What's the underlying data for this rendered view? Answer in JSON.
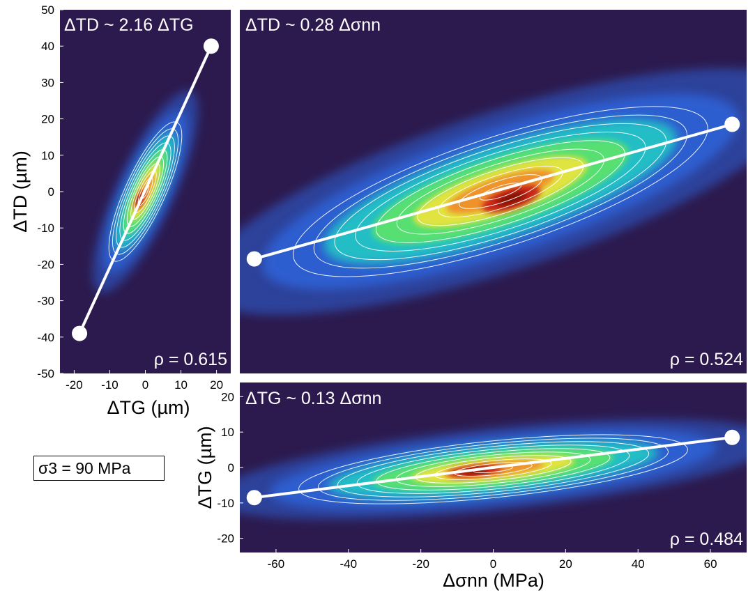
{
  "note": "σ3 = 90 MPa",
  "chart_data": [
    {
      "type": "heatmap",
      "title": "ΔTD ~ 2.16 ΔTG",
      "annotation": "ρ = 0.615",
      "xlabel": "ΔTG (µm)",
      "ylabel": "ΔTD (µm)",
      "xlim": [
        -24,
        24
      ],
      "ylim": [
        -50,
        50
      ],
      "xticks": [
        -20,
        -10,
        0,
        10,
        20
      ],
      "yticks": [
        -50,
        -40,
        -30,
        -20,
        -10,
        0,
        10,
        20,
        30,
        40,
        50
      ],
      "fit_line": {
        "x": [
          -18.5,
          18.5
        ],
        "y": [
          -39,
          40
        ],
        "slope": 2.16
      },
      "density_peak": {
        "x": -1.5,
        "y": -2
      },
      "contours": {
        "count": 10,
        "center": [
          0,
          0
        ],
        "semi_major": 21,
        "semi_minor": 5.6,
        "angle_deg": 65
      },
      "colormap": [
        "#2c1a4e",
        "#2f64d9",
        "#23c9c5",
        "#5de36a",
        "#f0e43a",
        "#f08a2a",
        "#c62014",
        "#7c0a06"
      ],
      "grid": false
    },
    {
      "type": "heatmap",
      "title": "ΔTD ~ 0.28 Δσnn",
      "annotation": "ρ = 0.524",
      "xlim": [
        -70,
        70
      ],
      "ylim": [
        -50,
        50
      ],
      "fit_line": {
        "x": [
          -66,
          66
        ],
        "y": [
          -18.5,
          18.5
        ],
        "slope": 0.28
      },
      "density_peak": {
        "x": 5,
        "y": -2
      },
      "contours": {
        "count": 10,
        "center": [
          2,
          0
        ],
        "semi_major": 60,
        "semi_minor": 15,
        "angle_deg": 18
      },
      "grid": false
    },
    {
      "type": "heatmap",
      "title": "ΔTG ~ 0.13 Δσnn",
      "annotation": "ρ = 0.484",
      "xlabel": "Δσnn (MPa)",
      "ylabel": "ΔTG (µm)",
      "xlim": [
        -70,
        70
      ],
      "ylim": [
        -24,
        24
      ],
      "xticks": [
        -60,
        -40,
        -20,
        0,
        20,
        40,
        60
      ],
      "yticks": [
        -20,
        -10,
        0,
        10,
        20
      ],
      "fit_line": {
        "x": [
          -66,
          66
        ],
        "y": [
          -8.5,
          8.5
        ],
        "slope": 0.13
      },
      "density_peak": {
        "x": -5,
        "y": -1
      },
      "contours": {
        "count": 10,
        "center": [
          0,
          -0.5
        ],
        "semi_major": 54,
        "semi_minor": 8,
        "angle_deg": 6
      },
      "grid": false
    }
  ]
}
